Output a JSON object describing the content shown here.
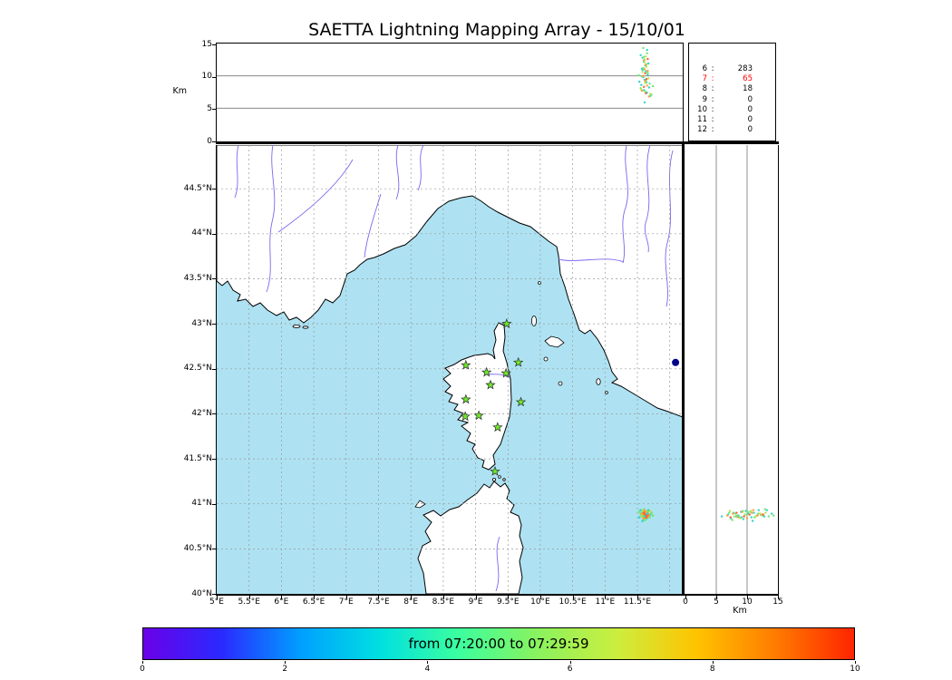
{
  "title": "SAETTA Lightning Mapping Array - 15/10/01",
  "top_panel": {
    "ylabel": "Km",
    "yticks": [
      {
        "label": "15",
        "km": 15
      },
      {
        "label": "10",
        "km": 10
      },
      {
        "label": "5",
        "km": 5
      },
      {
        "label": "0",
        "km": 0
      }
    ],
    "grid_km": [
      5,
      10
    ]
  },
  "stats_panel": {
    "separator": ":",
    "highlight_color": "#ff0000",
    "rows": [
      {
        "level": "6",
        "count": "283",
        "highlight": false
      },
      {
        "level": "7",
        "count": "65",
        "highlight": true
      },
      {
        "level": "8",
        "count": "18",
        "highlight": false
      },
      {
        "level": "9",
        "count": "0",
        "highlight": false
      },
      {
        "level": "10",
        "count": "0",
        "highlight": false
      },
      {
        "level": "11",
        "count": "0",
        "highlight": false
      },
      {
        "level": "12",
        "count": "0",
        "highlight": false
      }
    ]
  },
  "map_panel": {
    "lat_ticks": [
      {
        "label": "44.5°N",
        "deg": 44.5
      },
      {
        "label": "44°N",
        "deg": 44
      },
      {
        "label": "43.5°N",
        "deg": 43.5
      },
      {
        "label": "43°N",
        "deg": 43
      },
      {
        "label": "42.5°N",
        "deg": 42.5
      },
      {
        "label": "42°N",
        "deg": 42
      },
      {
        "label": "41.5°N",
        "deg": 41.5
      },
      {
        "label": "41°N",
        "deg": 41
      },
      {
        "label": "40.5°N",
        "deg": 40.5
      },
      {
        "label": "40°N",
        "deg": 40
      }
    ],
    "lon_ticks": [
      {
        "label": "5°E",
        "deg": 5
      },
      {
        "label": "5.5°E",
        "deg": 5.5
      },
      {
        "label": "6°E",
        "deg": 6
      },
      {
        "label": "6.5°E",
        "deg": 6.5
      },
      {
        "label": "7°E",
        "deg": 7
      },
      {
        "label": "7.5°E",
        "deg": 7.5
      },
      {
        "label": "8°E",
        "deg": 8
      },
      {
        "label": "8.5°E",
        "deg": 8.5
      },
      {
        "label": "9°E",
        "deg": 9
      },
      {
        "label": "9.5°E",
        "deg": 9.5
      },
      {
        "label": "10°E",
        "deg": 10
      },
      {
        "label": "10.5°E",
        "deg": 10.5
      },
      {
        "label": "11°E",
        "deg": 11
      },
      {
        "label": "11.5°E",
        "deg": 11.5
      }
    ],
    "extra_grid_lon": [
      12
    ],
    "sea_color": "#aee2f2",
    "land_color": "#ffffff",
    "river_color": "#7b68ee",
    "grid_color": "#999999"
  },
  "right_panel": {
    "xlabel": "Km",
    "xticks": [
      {
        "label": "0",
        "km": 0
      },
      {
        "label": "5",
        "km": 5
      },
      {
        "label": "10",
        "km": 10
      },
      {
        "label": "15",
        "km": 15
      }
    ],
    "grid_km": [
      5,
      10
    ]
  },
  "colorbar": {
    "label": "from 07:20:00 to 07:29:59",
    "ticks": [
      {
        "label": "0",
        "v": 0
      },
      {
        "label": "2",
        "v": 2
      },
      {
        "label": "4",
        "v": 4
      },
      {
        "label": "6",
        "v": 6
      },
      {
        "label": "8",
        "v": 8
      },
      {
        "label": "10",
        "v": 10
      }
    ],
    "gradient": [
      "#6a00e8",
      "#2a2aff",
      "#00a0ff",
      "#00e0e0",
      "#3cff9e",
      "#8af25e",
      "#ccee3e",
      "#ffc400",
      "#ff7c00",
      "#ff2400"
    ]
  },
  "chart_data": {
    "type": "scatter",
    "title": "SAETTA Lightning Mapping Array - 15/10/01",
    "time_window": "from 07:20:00 to 07:29:59",
    "map_extent": {
      "lon": [
        5.0,
        12.2
      ],
      "lat": [
        40.0,
        44.99
      ]
    },
    "altitude_axis_km": {
      "range": [
        0,
        15
      ],
      "ticks": [
        0,
        5,
        10,
        15
      ]
    },
    "colorbar_axis": {
      "range": [
        0,
        10
      ],
      "ticks": [
        0,
        2,
        4,
        6,
        8,
        10
      ]
    },
    "source_counts_by_level": {
      "6": 283,
      "7": 65,
      "8": 18,
      "9": 0,
      "10": 0,
      "11": 0,
      "12": 0
    },
    "point_colors": [
      "#2fd6c6",
      "#74e874",
      "#b9e44d",
      "#ffa03c",
      "#ff5f35"
    ],
    "lightning_sources": [
      [
        11.58,
        40.86,
        12.8,
        0
      ],
      [
        11.6,
        40.88,
        12.2,
        0
      ],
      [
        11.62,
        40.87,
        11.6,
        0
      ],
      [
        11.57,
        40.9,
        11.1,
        0
      ],
      [
        11.63,
        40.85,
        10.7,
        0
      ],
      [
        11.66,
        40.89,
        10.2,
        0
      ],
      [
        11.59,
        40.92,
        9.8,
        0
      ],
      [
        11.61,
        40.83,
        9.4,
        0
      ],
      [
        11.64,
        40.91,
        9.0,
        0
      ],
      [
        11.56,
        40.87,
        8.6,
        0
      ],
      [
        11.68,
        40.86,
        8.2,
        0
      ],
      [
        11.6,
        40.9,
        7.8,
        0
      ],
      [
        11.65,
        40.84,
        7.4,
        0
      ],
      [
        11.55,
        40.93,
        13.2,
        0
      ],
      [
        11.7,
        40.88,
        6.9,
        0
      ],
      [
        11.58,
        40.81,
        10.9,
        0
      ],
      [
        11.67,
        40.93,
        11.9,
        0
      ],
      [
        11.53,
        40.85,
        9.1,
        0
      ],
      [
        11.61,
        40.87,
        12.5,
        1
      ],
      [
        11.64,
        40.89,
        11.8,
        1
      ],
      [
        11.59,
        40.85,
        11.2,
        1
      ],
      [
        11.66,
        40.91,
        10.5,
        1
      ],
      [
        11.57,
        40.88,
        9.9,
        1
      ],
      [
        11.63,
        40.92,
        9.3,
        1
      ],
      [
        11.69,
        40.85,
        8.8,
        1
      ],
      [
        11.55,
        40.89,
        8.1,
        1
      ],
      [
        11.62,
        40.82,
        7.6,
        1
      ],
      [
        11.72,
        40.9,
        7.1,
        1
      ],
      [
        11.6,
        40.94,
        12.9,
        1
      ],
      [
        11.65,
        40.86,
        13.5,
        1
      ],
      [
        11.52,
        40.91,
        10.1,
        1
      ],
      [
        11.74,
        40.87,
        8.4,
        1
      ],
      [
        11.59,
        40.87,
        14.3,
        1
      ],
      [
        11.61,
        40.89,
        12.1,
        2
      ],
      [
        11.64,
        40.86,
        11.4,
        2
      ],
      [
        11.58,
        40.92,
        10.6,
        2
      ],
      [
        11.67,
        40.88,
        9.6,
        2
      ],
      [
        11.62,
        40.84,
        8.9,
        2
      ],
      [
        11.56,
        40.86,
        7.9,
        2
      ],
      [
        11.7,
        40.92,
        7.2,
        2
      ],
      [
        11.63,
        40.9,
        13.0,
        2
      ],
      [
        11.6,
        40.88,
        12.4,
        3
      ],
      [
        11.63,
        40.87,
        11.7,
        3
      ],
      [
        11.66,
        40.9,
        10.8,
        3
      ],
      [
        11.59,
        40.84,
        10.0,
        3
      ],
      [
        11.62,
        40.91,
        9.2,
        3
      ],
      [
        11.65,
        40.85,
        8.5,
        3
      ],
      [
        11.57,
        40.89,
        7.7,
        3
      ],
      [
        11.68,
        40.87,
        6.8,
        3
      ],
      [
        11.61,
        40.93,
        11.0,
        3
      ],
      [
        11.62,
        40.88,
        10.4,
        4
      ],
      [
        11.64,
        40.86,
        9.5,
        4
      ],
      [
        11.6,
        40.9,
        8.3,
        4
      ],
      [
        11.66,
        40.88,
        12.6,
        4
      ],
      [
        11.63,
        40.85,
        7.3,
        4
      ],
      [
        11.65,
        40.89,
        14.0,
        0
      ],
      [
        11.61,
        40.86,
        5.9,
        0
      ]
    ],
    "lma_stations": [
      [
        9.48,
        43.0
      ],
      [
        8.85,
        42.54
      ],
      [
        9.17,
        42.46
      ],
      [
        9.47,
        42.45
      ],
      [
        9.66,
        42.57
      ],
      [
        9.23,
        42.32
      ],
      [
        8.85,
        42.16
      ],
      [
        9.7,
        42.13
      ],
      [
        8.84,
        41.97
      ],
      [
        9.05,
        41.98
      ],
      [
        9.34,
        41.85
      ],
      [
        9.3,
        41.36
      ]
    ],
    "station_marker": {
      "shape": "star",
      "fill": "#6ee829",
      "stroke": "#2a2a2a"
    },
    "extra_marker": {
      "lon": 12.09,
      "lat": 42.57,
      "color": "#00008b"
    }
  }
}
